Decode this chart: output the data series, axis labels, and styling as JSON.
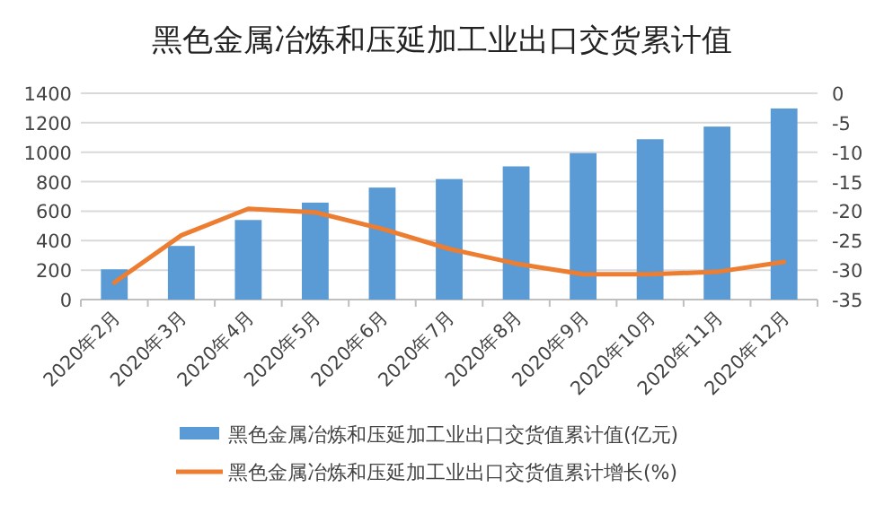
{
  "chart_data": {
    "type": "bar",
    "title": "黑色金属冶炼和压延加工业出口交货累计值",
    "categories": [
      "2020年2月",
      "2020年3月",
      "2020年4月",
      "2020年5月",
      "2020年6月",
      "2020年7月",
      "2020年8月",
      "2020年9月",
      "2020年10月",
      "2020年11月",
      "2020年12月"
    ],
    "series": [
      {
        "name": "黑色金属冶炼和压延加工业出口交货值累计值(亿元)",
        "color": "#5b9bd5",
        "values": [
          205,
          364,
          540,
          658,
          760,
          818,
          904,
          994,
          1088,
          1174,
          1297
        ]
      },
      {
        "name": "黑色金属冶炼和压延加工业出口交货值累计增长(%)",
        "type": "line",
        "axis": "y2",
        "color": "#ed7d31",
        "values": [
          -32.1,
          -24.1,
          -19.6,
          -20.2,
          -23,
          -26.4,
          -28.9,
          -30.7,
          -30.7,
          -30.3,
          -28.6
        ]
      }
    ],
    "ylim": [
      0,
      1400
    ],
    "yticks": [
      0,
      200,
      400,
      600,
      800,
      1000,
      1200,
      1400
    ],
    "y2lim": [
      -35,
      0
    ],
    "y2ticks": [
      -35,
      -30,
      -25,
      -20,
      -15,
      -10,
      -5,
      0
    ],
    "grid": "y",
    "legend": "bottom"
  }
}
